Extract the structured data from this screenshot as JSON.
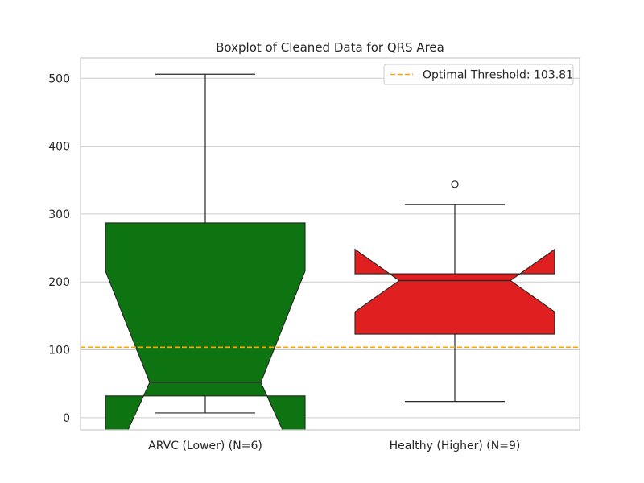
{
  "chart_data": {
    "type": "boxplot",
    "title": "Boxplot of Cleaned Data for QRS Area",
    "xlabel": "",
    "ylabel": "",
    "ylim": [
      -18,
      530
    ],
    "yticks": [
      0,
      100,
      200,
      300,
      400,
      500
    ],
    "grid": true,
    "notched": true,
    "categories": [
      "ARVC (Lower) (N=6)",
      "Healthy (Higher) (N=9)"
    ],
    "boxes": [
      {
        "name": "ARVC (Lower) (N=6)",
        "color": "#0e7411",
        "whisker_low": 7,
        "q1": 32,
        "median": 52,
        "q3": 287,
        "whisker_high": 506,
        "notch_low": -91,
        "notch_high": 216,
        "outliers": []
      },
      {
        "name": "Healthy (Higher) (N=9)",
        "color": "#e02020",
        "whisker_low": 24,
        "q1": 123,
        "median": 202,
        "q3": 212,
        "whisker_high": 314,
        "notch_low": 156,
        "notch_high": 248,
        "outliers": [
          344
        ]
      }
    ],
    "reference_lines": [
      {
        "value": 103.81,
        "color": "#ffa500",
        "style": "dashed",
        "label": "Optimal Threshold: 103.81"
      }
    ],
    "legend": {
      "placement": "top-right",
      "entries": [
        "Optimal Threshold: 103.81"
      ]
    }
  }
}
